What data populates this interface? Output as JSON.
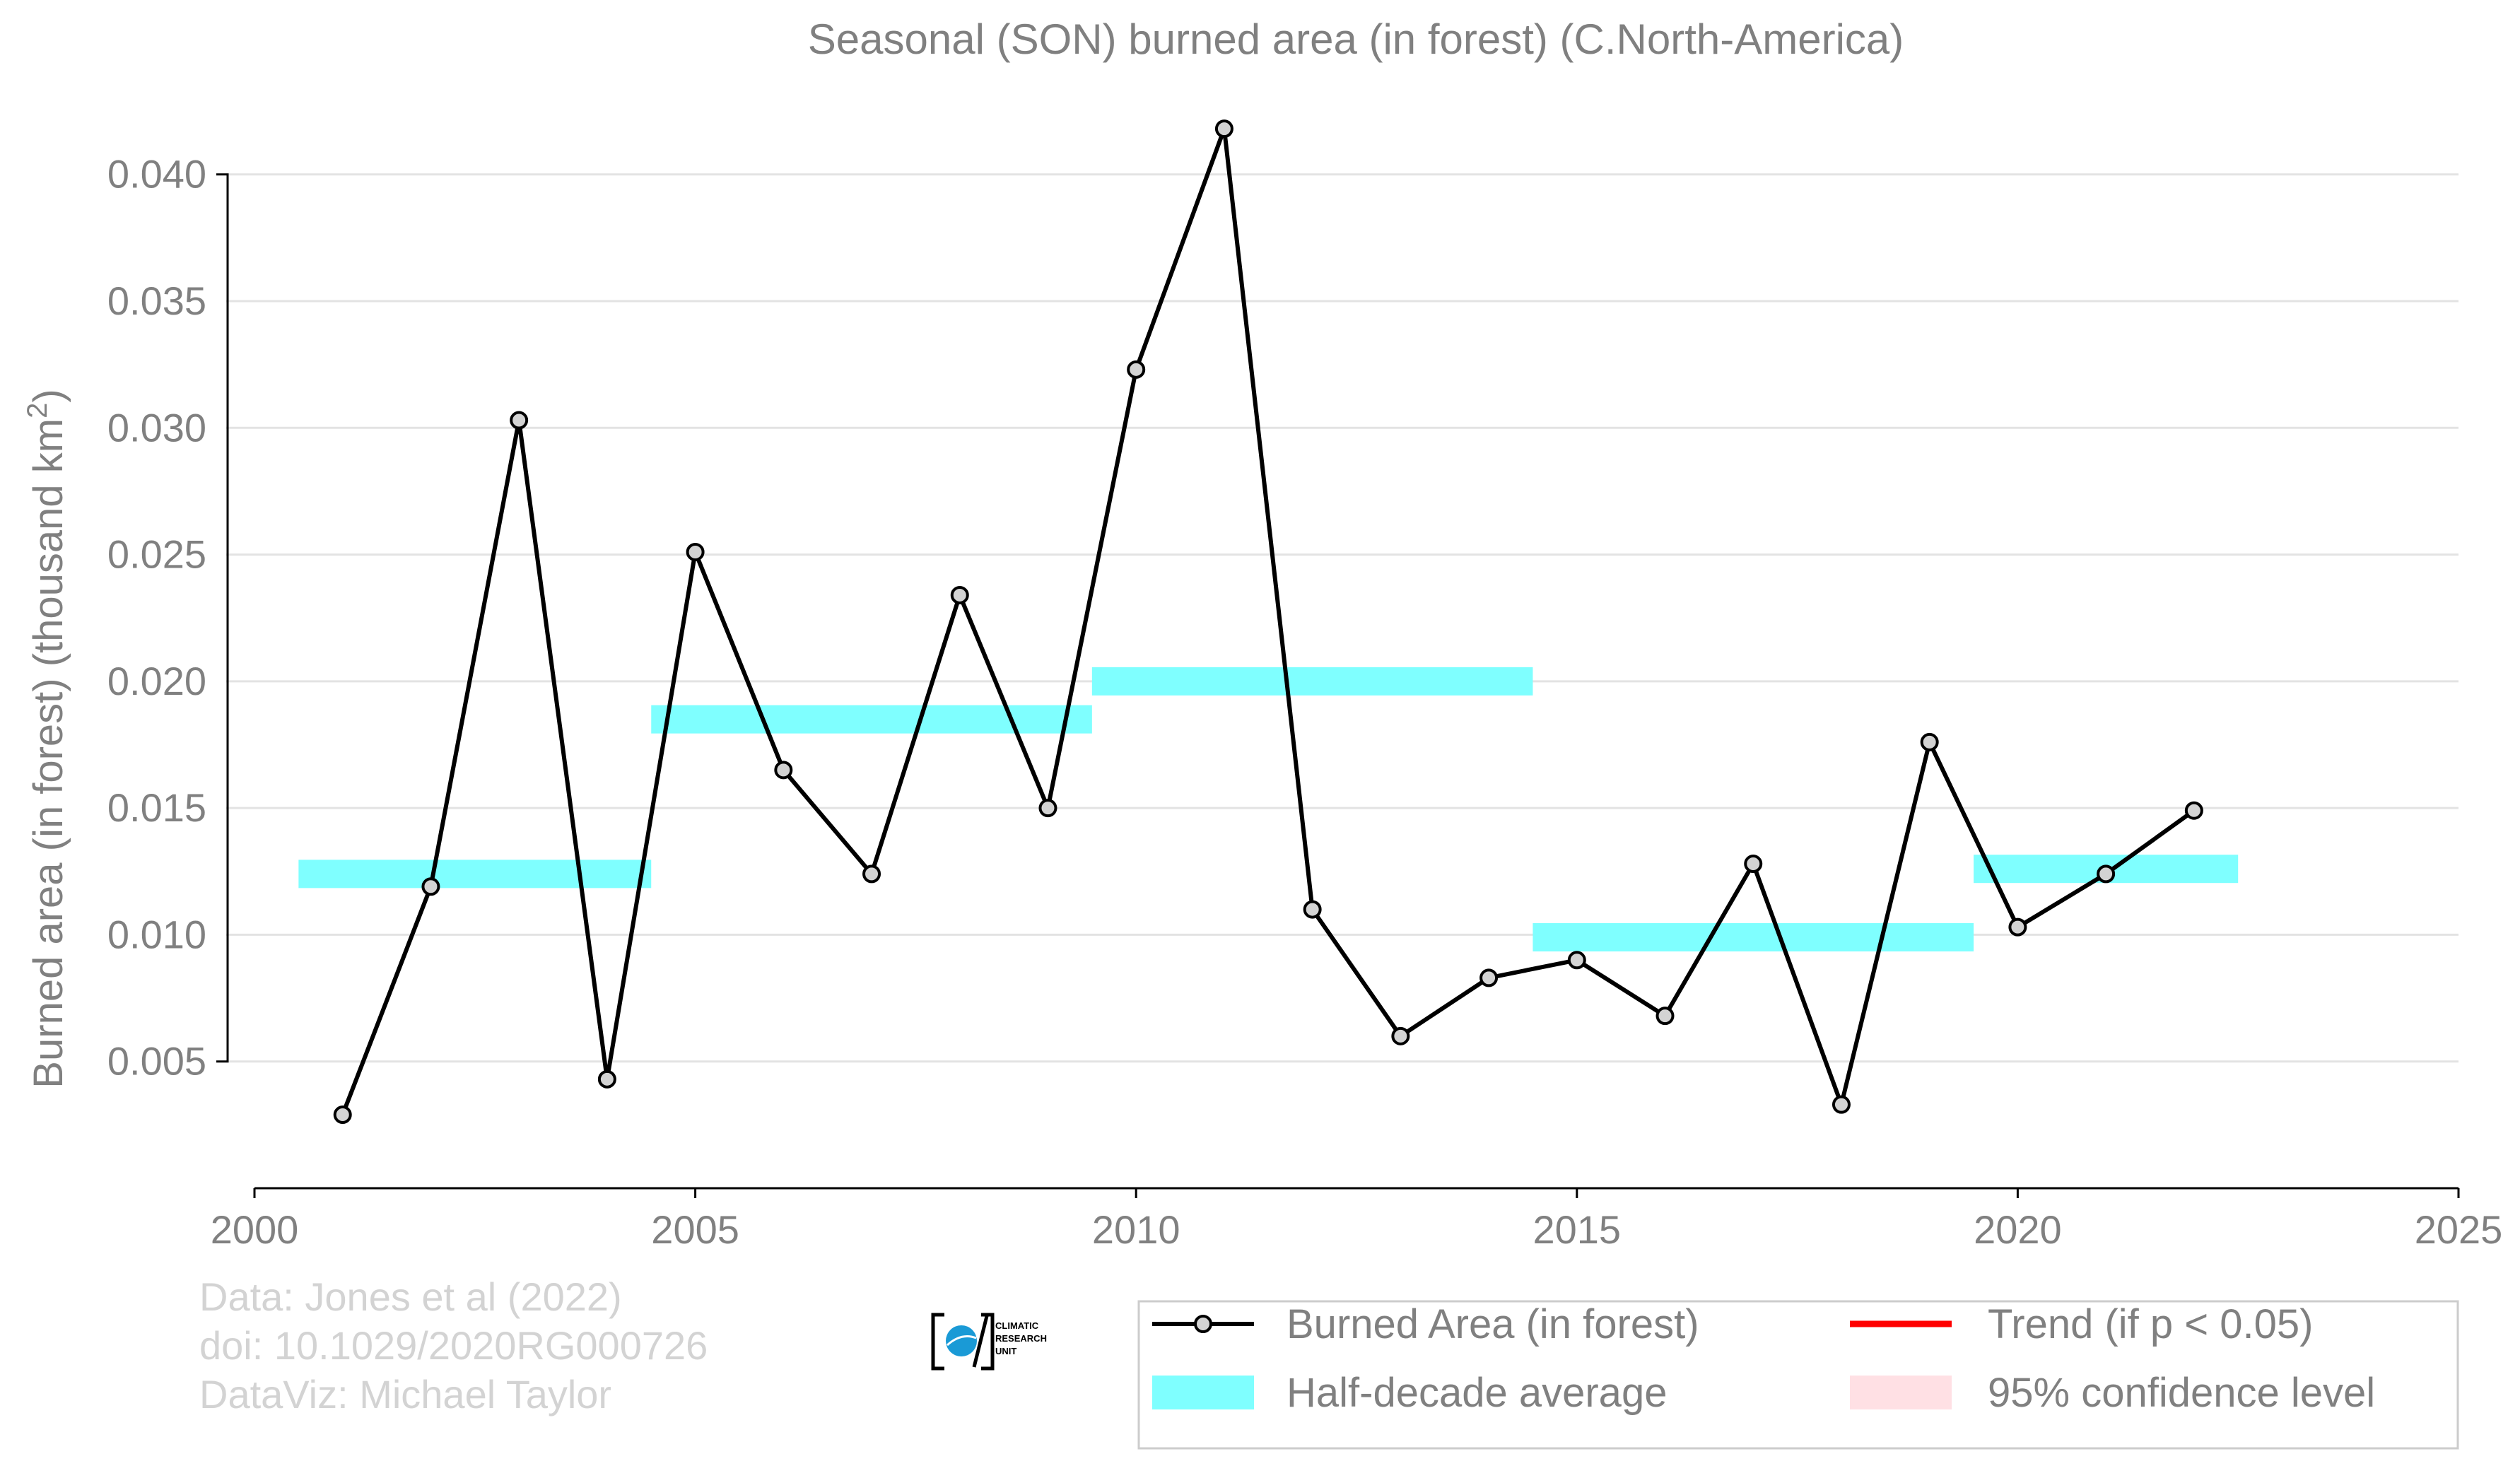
{
  "chart_data": {
    "type": "line",
    "title": "Seasonal (SON) burned area (in forest) (C.North-America)",
    "xlabel": "",
    "ylabel": "Burned area (in forest) (thousand km",
    "ylabel_sup": "2",
    "ylabel_close": ")",
    "xlim": [
      2000,
      2025
    ],
    "ylim": [
      0,
      0.042
    ],
    "x_ticks": [
      2000,
      2005,
      2010,
      2015,
      2020,
      2025
    ],
    "x_tick_labels": [
      "2000",
      "2005",
      "2010",
      "2015",
      "2020",
      "2025"
    ],
    "y_ticks": [
      0.005,
      0.01,
      0.015,
      0.02,
      0.025,
      0.03,
      0.035,
      0.04
    ],
    "y_tick_labels": [
      "0.005",
      "0.010",
      "0.015",
      "0.020",
      "0.025",
      "0.030",
      "0.035",
      "0.040"
    ],
    "grid": true,
    "legend_position": "bottom-right",
    "series": [
      {
        "name": "Burned Area (in forest)",
        "color": "#000000",
        "marker_fill": "#d3d3d3",
        "x": [
          2001,
          2002,
          2003,
          2004,
          2005,
          2006,
          2007,
          2008,
          2009,
          2010,
          2011,
          2012,
          2013,
          2014,
          2015,
          2016,
          2017,
          2018,
          2019,
          2020,
          2021,
          2022
        ],
        "y": [
          0.0029,
          0.0119,
          0.0303,
          0.0043,
          0.0251,
          0.0165,
          0.0124,
          0.0234,
          0.015,
          0.0323,
          0.0418,
          0.011,
          0.006,
          0.0083,
          0.009,
          0.0068,
          0.0128,
          0.0033,
          0.0176,
          0.0103,
          0.0124,
          0.0149
        ]
      }
    ],
    "half_decade_average": {
      "name": "Half-decade average",
      "color": "#7fffff",
      "segments": [
        {
          "x0": 2000.5,
          "x1": 2004.5,
          "y": 0.0124
        },
        {
          "x0": 2004.5,
          "x1": 2009.5,
          "y": 0.0185
        },
        {
          "x0": 2009.5,
          "x1": 2014.5,
          "y": 0.02
        },
        {
          "x0": 2014.5,
          "x1": 2019.5,
          "y": 0.0099
        },
        {
          "x0": 2019.5,
          "x1": 2022.5,
          "y": 0.0126
        }
      ]
    },
    "legend": [
      {
        "label": "Burned Area (in forest)",
        "kind": "line-marker",
        "color": "#000000"
      },
      {
        "label": "Trend (if p < 0.05)",
        "kind": "line",
        "color": "#ff0000"
      },
      {
        "label": "Half-decade average",
        "kind": "patch",
        "color": "#7fffff"
      },
      {
        "label": "95% confidence level",
        "kind": "patch",
        "color": "#ffe0e4"
      }
    ]
  },
  "credits": {
    "line1": "Data: Jones et al (2022)",
    "line2": "doi: 10.1029/2020RG000726",
    "line3": "DataViz: Michael Taylor"
  },
  "logo": {
    "line1": "CLIMATIC",
    "line2": "RESEARCH",
    "line3": "UNIT"
  }
}
